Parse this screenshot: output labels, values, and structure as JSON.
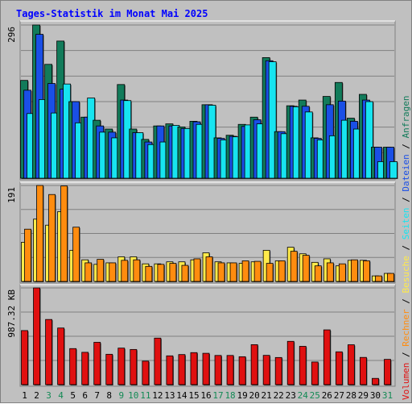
{
  "chart_data": {
    "type": "bar",
    "title": "Tages-Statistik im Monat Mai 2025",
    "colors": {
      "anfragen": "#127b5a",
      "dateien": "#1a4fe6",
      "seiten": "#17e4f0",
      "besuche": "#ffea4a",
      "rechner": "#ff8c0f",
      "volumen": "#e01010",
      "weekend_label": "#138a55",
      "weekday_label": "#000000",
      "background": "#c0c0c0"
    },
    "x": {
      "days": [
        "1",
        "2",
        "3",
        "4",
        "5",
        "6",
        "7",
        "8",
        "9",
        "10",
        "11",
        "12",
        "13",
        "14",
        "15",
        "16",
        "17",
        "18",
        "19",
        "20",
        "21",
        "22",
        "23",
        "24",
        "25",
        "26",
        "27",
        "28",
        "29",
        "30",
        "31"
      ],
      "weekend": [
        false,
        false,
        true,
        true,
        false,
        false,
        false,
        false,
        true,
        true,
        true,
        false,
        false,
        false,
        false,
        false,
        true,
        true,
        false,
        false,
        false,
        false,
        false,
        true,
        true,
        false,
        false,
        false,
        false,
        false,
        true
      ]
    },
    "panels": [
      {
        "name": "anfragen-dateien-seiten",
        "max_label": "296",
        "ymax": 296,
        "series": [
          {
            "key": "anfragen",
            "values": [
              189,
              296,
              220,
              265,
              148,
              118,
              112,
              95,
              181,
              95,
              75,
              101,
              105,
              99,
              110,
              142,
              78,
              83,
              104,
              118,
              233,
              90,
              140,
              151,
              78,
              158,
              185,
              116,
              162,
              60,
              60
            ]
          },
          {
            "key": "dateien",
            "values": [
              170,
              278,
              183,
              172,
              148,
              118,
              101,
              89,
              151,
              88,
              70,
              101,
              101,
              96,
              109,
              142,
              77,
              81,
              100,
              113,
              227,
              90,
              139,
              139,
              77,
              142,
              149,
              110,
              151,
              60,
              60
            ]
          },
          {
            "key": "seiten",
            "values": [
              125,
              152,
              126,
              182,
              107,
              155,
              89,
              78,
              150,
              88,
              65,
              70,
              102,
              96,
              104,
              141,
              74,
              80,
              103,
              105,
              225,
              86,
              138,
              128,
              74,
              82,
              112,
              95,
              148,
              32,
              32
            ]
          }
        ]
      },
      {
        "name": "besuche-rechner",
        "max_label": "191",
        "ymax": 191,
        "series": [
          {
            "key": "besuche",
            "values": [
              78,
              124,
              112,
              139,
              62,
              43,
              34,
              37,
              49,
              49,
              35,
              35,
              39,
              39,
              43,
              57,
              39,
              37,
              36,
              39,
              62,
              41,
              68,
              55,
              38,
              45,
              31,
              42,
              42,
              11,
              16
            ]
          },
          {
            "key": "rechner",
            "values": [
              104,
              191,
              173,
              190,
              108,
              37,
              44,
              37,
              42,
              43,
              30,
              34,
              36,
              32,
              45,
              49,
              37,
              37,
              41,
              40,
              36,
              41,
              60,
              52,
              31,
              37,
              35,
              43,
              41,
              11,
              16
            ]
          }
        ]
      },
      {
        "name": "volumen",
        "max_label": "987.32 KB",
        "ymax": 987.32,
        "series": [
          {
            "key": "volumen",
            "values": [
              552,
              987,
              665,
              578,
              368,
              330,
              432,
              310,
              373,
              359,
              240,
              475,
              294,
              307,
              327,
              320,
              298,
              298,
              285,
              408,
              299,
              277,
              442,
              391,
              231,
              559,
              335,
              407,
              278,
              64,
              258
            ]
          }
        ]
      }
    ],
    "side_legend": [
      {
        "text": "Volumen",
        "color_key": "volumen"
      },
      {
        "text": " / ",
        "color_key": "weekday_label"
      },
      {
        "text": "Rechner",
        "color_key": "rechner"
      },
      {
        "text": " / ",
        "color_key": "weekday_label"
      },
      {
        "text": "Besuche",
        "color_key": "besuche"
      },
      {
        "text": " / ",
        "color_key": "weekday_label"
      },
      {
        "text": "Seiten",
        "color_key": "seiten"
      },
      {
        "text": " / ",
        "color_key": "weekday_label"
      },
      {
        "text": "Dateien",
        "color_key": "dateien"
      },
      {
        "text": " / ",
        "color_key": "weekday_label"
      },
      {
        "text": "Anfragen",
        "color_key": "anfragen"
      }
    ]
  }
}
